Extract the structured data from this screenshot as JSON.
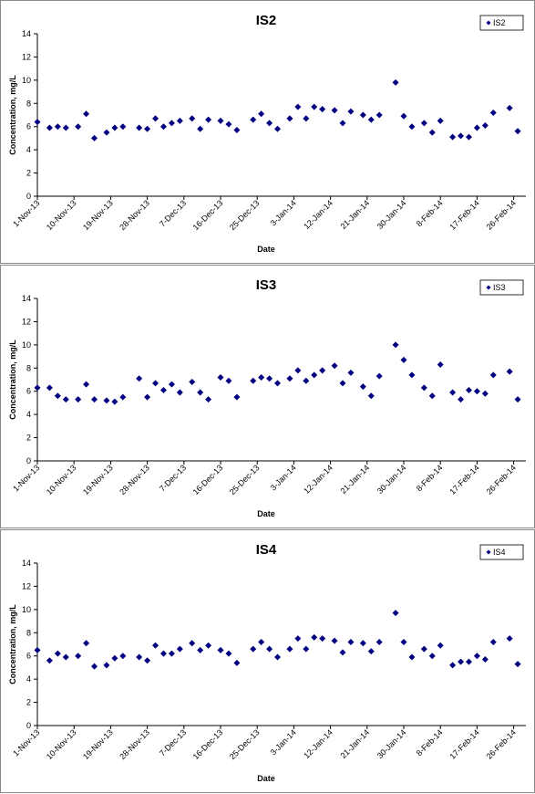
{
  "chart_data": [
    {
      "type": "scatter",
      "title": "IS2",
      "xlabel": "Date",
      "ylabel": "Concentration, mg/L",
      "x": [
        "2013-11-01",
        "2013-11-04",
        "2013-11-06",
        "2013-11-08",
        "2013-11-11",
        "2013-11-13",
        "2013-11-15",
        "2013-11-18",
        "2013-11-20",
        "2013-11-22",
        "2013-11-26",
        "2013-11-28",
        "2013-11-30",
        "2013-12-02",
        "2013-12-04",
        "2013-12-06",
        "2013-12-09",
        "2013-12-11",
        "2013-12-13",
        "2013-12-16",
        "2013-12-18",
        "2013-12-20",
        "2013-12-24",
        "2013-12-26",
        "2013-12-28",
        "2013-12-30",
        "2014-01-02",
        "2014-01-04",
        "2014-01-06",
        "2014-01-08",
        "2014-01-10",
        "2014-01-13",
        "2014-01-15",
        "2014-01-17",
        "2014-01-20",
        "2014-01-22",
        "2014-01-24",
        "2014-01-28",
        "2014-01-30",
        "2014-02-01",
        "2014-02-04",
        "2014-02-06",
        "2014-02-08",
        "2014-02-11",
        "2014-02-13",
        "2014-02-15",
        "2014-02-17",
        "2014-02-19",
        "2014-02-21",
        "2014-02-25",
        "2014-02-27"
      ],
      "series": [
        {
          "name": "IS2",
          "color": "#000080",
          "values": [
            6.4,
            5.9,
            6.0,
            5.9,
            6.0,
            7.1,
            5.0,
            5.5,
            5.9,
            6.0,
            5.9,
            5.8,
            6.7,
            6.0,
            6.3,
            6.5,
            6.7,
            5.8,
            6.6,
            6.5,
            6.2,
            5.7,
            6.6,
            7.1,
            6.3,
            5.8,
            6.7,
            7.7,
            6.7,
            7.7,
            7.5,
            7.4,
            6.3,
            7.3,
            7.0,
            6.6,
            7.0,
            9.8,
            6.9,
            6.0,
            6.3,
            5.5,
            6.5,
            5.1,
            5.2,
            5.1,
            5.9,
            6.1,
            7.2,
            7.6,
            5.6
          ]
        }
      ],
      "xlim": [
        "2013-11-01",
        "2014-03-01"
      ],
      "xticks": [
        {
          "value": "2013-11-01",
          "label": "1-Nov-13"
        },
        {
          "value": "2013-11-10",
          "label": "10-Nov-13"
        },
        {
          "value": "2013-11-19",
          "label": "19-Nov-13"
        },
        {
          "value": "2013-11-28",
          "label": "28-Nov-13"
        },
        {
          "value": "2013-12-07",
          "label": "7-Dec-13"
        },
        {
          "value": "2013-12-16",
          "label": "16-Dec-13"
        },
        {
          "value": "2013-12-25",
          "label": "25-Dec-13"
        },
        {
          "value": "2014-01-03",
          "label": "3-Jan-14"
        },
        {
          "value": "2014-01-12",
          "label": "12-Jan-14"
        },
        {
          "value": "2014-01-21",
          "label": "21-Jan-14"
        },
        {
          "value": "2014-01-30",
          "label": "30-Jan-14"
        },
        {
          "value": "2014-02-08",
          "label": "8-Feb-14"
        },
        {
          "value": "2014-02-17",
          "label": "17-Feb-14"
        },
        {
          "value": "2014-02-26",
          "label": "26-Feb-14"
        }
      ],
      "ylim": [
        0,
        14
      ],
      "yticks": [
        0,
        2,
        4,
        6,
        8,
        10,
        12,
        14
      ],
      "legend": "top-right"
    },
    {
      "type": "scatter",
      "title": "IS3",
      "xlabel": "Date",
      "ylabel": "Concentration, mg/L",
      "x": [
        "2013-11-01",
        "2013-11-04",
        "2013-11-06",
        "2013-11-08",
        "2013-11-11",
        "2013-11-13",
        "2013-11-15",
        "2013-11-18",
        "2013-11-20",
        "2013-11-22",
        "2013-11-26",
        "2013-11-28",
        "2013-11-30",
        "2013-12-02",
        "2013-12-04",
        "2013-12-06",
        "2013-12-09",
        "2013-12-11",
        "2013-12-13",
        "2013-12-16",
        "2013-12-18",
        "2013-12-20",
        "2013-12-24",
        "2013-12-26",
        "2013-12-28",
        "2013-12-30",
        "2014-01-02",
        "2014-01-04",
        "2014-01-06",
        "2014-01-08",
        "2014-01-10",
        "2014-01-13",
        "2014-01-15",
        "2014-01-17",
        "2014-01-20",
        "2014-01-22",
        "2014-01-24",
        "2014-01-28",
        "2014-01-30",
        "2014-02-01",
        "2014-02-04",
        "2014-02-06",
        "2014-02-08",
        "2014-02-11",
        "2014-02-13",
        "2014-02-15",
        "2014-02-17",
        "2014-02-19",
        "2014-02-21",
        "2014-02-25",
        "2014-02-27"
      ],
      "series": [
        {
          "name": "IS3",
          "color": "#000080",
          "values": [
            6.3,
            6.3,
            5.6,
            5.3,
            5.3,
            6.6,
            5.3,
            5.2,
            5.1,
            5.5,
            7.1,
            5.5,
            6.7,
            6.1,
            6.6,
            5.9,
            6.8,
            5.9,
            5.3,
            7.2,
            6.9,
            5.5,
            6.9,
            7.2,
            7.1,
            6.7,
            7.1,
            7.8,
            6.9,
            7.4,
            7.8,
            8.2,
            6.7,
            7.6,
            6.4,
            5.6,
            7.3,
            10.0,
            8.7,
            7.4,
            6.3,
            5.6,
            8.3,
            5.9,
            5.3,
            6.1,
            6.0,
            5.8,
            7.4,
            7.7,
            5.3
          ]
        }
      ],
      "xlim": [
        "2013-11-01",
        "2014-03-01"
      ],
      "xticks": [
        {
          "value": "2013-11-01",
          "label": "1-Nov-13"
        },
        {
          "value": "2013-11-10",
          "label": "10-Nov-13"
        },
        {
          "value": "2013-11-19",
          "label": "19-Nov-13"
        },
        {
          "value": "2013-11-28",
          "label": "28-Nov-13"
        },
        {
          "value": "2013-12-07",
          "label": "7-Dec-13"
        },
        {
          "value": "2013-12-16",
          "label": "16-Dec-13"
        },
        {
          "value": "2013-12-25",
          "label": "25-Dec-13"
        },
        {
          "value": "2014-01-03",
          "label": "3-Jan-14"
        },
        {
          "value": "2014-01-12",
          "label": "12-Jan-14"
        },
        {
          "value": "2014-01-21",
          "label": "21-Jan-14"
        },
        {
          "value": "2014-01-30",
          "label": "30-Jan-14"
        },
        {
          "value": "2014-02-08",
          "label": "8-Feb-14"
        },
        {
          "value": "2014-02-17",
          "label": "17-Feb-14"
        },
        {
          "value": "2014-02-26",
          "label": "26-Feb-14"
        }
      ],
      "ylim": [
        0,
        14
      ],
      "yticks": [
        0,
        2,
        4,
        6,
        8,
        10,
        12,
        14
      ],
      "legend": "top-right"
    },
    {
      "type": "scatter",
      "title": "IS4",
      "xlabel": "Date",
      "ylabel": "Concentration, mg/L",
      "x": [
        "2013-11-01",
        "2013-11-04",
        "2013-11-06",
        "2013-11-08",
        "2013-11-11",
        "2013-11-13",
        "2013-11-15",
        "2013-11-18",
        "2013-11-20",
        "2013-11-22",
        "2013-11-26",
        "2013-11-28",
        "2013-11-30",
        "2013-12-02",
        "2013-12-04",
        "2013-12-06",
        "2013-12-09",
        "2013-12-11",
        "2013-12-13",
        "2013-12-16",
        "2013-12-18",
        "2013-12-20",
        "2013-12-24",
        "2013-12-26",
        "2013-12-28",
        "2013-12-30",
        "2014-01-02",
        "2014-01-04",
        "2014-01-06",
        "2014-01-08",
        "2014-01-10",
        "2014-01-13",
        "2014-01-15",
        "2014-01-17",
        "2014-01-20",
        "2014-01-22",
        "2014-01-24",
        "2014-01-28",
        "2014-01-30",
        "2014-02-01",
        "2014-02-04",
        "2014-02-06",
        "2014-02-08",
        "2014-02-11",
        "2014-02-13",
        "2014-02-15",
        "2014-02-17",
        "2014-02-19",
        "2014-02-21",
        "2014-02-25",
        "2014-02-27"
      ],
      "series": [
        {
          "name": "IS4",
          "color": "#000080",
          "values": [
            6.5,
            5.6,
            6.2,
            5.9,
            6.0,
            7.1,
            5.1,
            5.2,
            5.8,
            6.0,
            5.9,
            5.6,
            6.9,
            6.2,
            6.2,
            6.6,
            7.1,
            6.5,
            6.9,
            6.5,
            6.2,
            5.4,
            6.6,
            7.2,
            6.6,
            5.9,
            6.6,
            7.5,
            6.6,
            7.6,
            7.5,
            7.3,
            6.3,
            7.2,
            7.1,
            6.4,
            7.2,
            9.7,
            7.2,
            5.9,
            6.6,
            6.0,
            6.9,
            5.2,
            5.5,
            5.5,
            6.0,
            5.7,
            7.2,
            7.5,
            5.3
          ]
        }
      ],
      "xlim": [
        "2013-11-01",
        "2014-03-01"
      ],
      "xticks": [
        {
          "value": "2013-11-01",
          "label": "1-Nov-13"
        },
        {
          "value": "2013-11-10",
          "label": "10-Nov-13"
        },
        {
          "value": "2013-11-19",
          "label": "19-Nov-13"
        },
        {
          "value": "2013-11-28",
          "label": "28-Nov-13"
        },
        {
          "value": "2013-12-07",
          "label": "7-Dec-13"
        },
        {
          "value": "2013-12-16",
          "label": "16-Dec-13"
        },
        {
          "value": "2013-12-25",
          "label": "25-Dec-13"
        },
        {
          "value": "2014-01-03",
          "label": "3-Jan-14"
        },
        {
          "value": "2014-01-12",
          "label": "12-Jan-14"
        },
        {
          "value": "2014-01-21",
          "label": "21-Jan-14"
        },
        {
          "value": "2014-01-30",
          "label": "30-Jan-14"
        },
        {
          "value": "2014-02-08",
          "label": "8-Feb-14"
        },
        {
          "value": "2014-02-17",
          "label": "17-Feb-14"
        },
        {
          "value": "2014-02-26",
          "label": "26-Feb-14"
        }
      ],
      "ylim": [
        0,
        14
      ],
      "yticks": [
        0,
        2,
        4,
        6,
        8,
        10,
        12,
        14
      ],
      "legend": "top-right"
    }
  ]
}
